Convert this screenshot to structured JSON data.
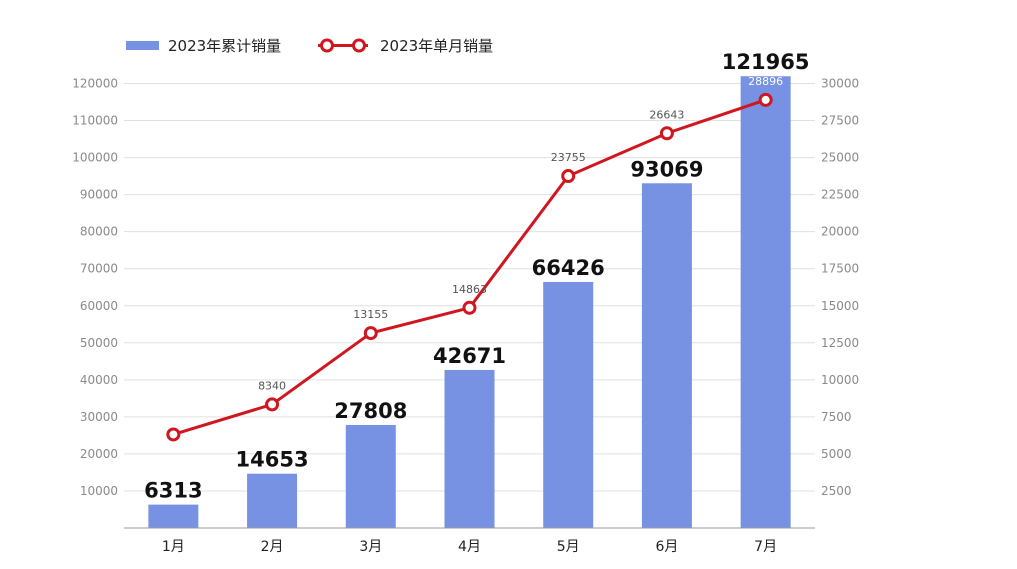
{
  "chart_data": {
    "type": "bar",
    "categories": [
      "1月",
      "2月",
      "3月",
      "4月",
      "5月",
      "6月",
      "7月"
    ],
    "series": [
      {
        "name": "2023年累计销量",
        "type": "bar",
        "axis": "left",
        "color": "#7792e3",
        "values": [
          6313,
          14653,
          27808,
          42671,
          66426,
          93069,
          121965
        ]
      },
      {
        "name": "2023年单月销量",
        "type": "line",
        "axis": "right",
        "color": "#d0171f",
        "values": [
          6313,
          8340,
          13155,
          14863,
          23755,
          26643,
          28896
        ]
      }
    ],
    "y_left": {
      "ylim": [
        0,
        125000
      ],
      "ticks": [
        10000,
        20000,
        30000,
        40000,
        50000,
        60000,
        70000,
        80000,
        90000,
        100000,
        110000,
        120000
      ]
    },
    "y_right": {
      "ylim": [
        0,
        31250
      ],
      "ticks": [
        2500,
        5000,
        7500,
        10000,
        12500,
        15000,
        17500,
        20000,
        22500,
        25000,
        27500,
        30000
      ]
    },
    "grid": true,
    "legend_position": "top-left",
    "title": "",
    "xlabel": "",
    "ylabel": ""
  }
}
